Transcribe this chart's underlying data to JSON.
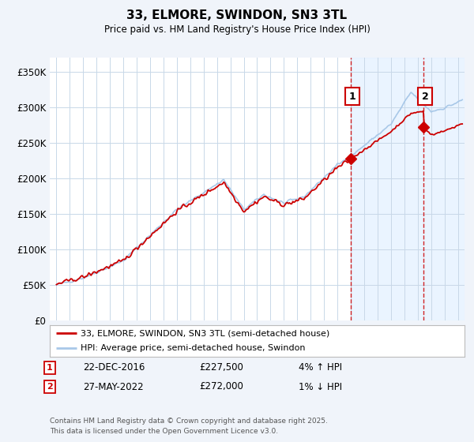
{
  "title": "33, ELMORE, SWINDON, SN3 3TL",
  "subtitle": "Price paid vs. HM Land Registry's House Price Index (HPI)",
  "ylabel_ticks": [
    "£0",
    "£50K",
    "£100K",
    "£150K",
    "£200K",
    "£250K",
    "£300K",
    "£350K"
  ],
  "ytick_values": [
    0,
    50000,
    100000,
    150000,
    200000,
    250000,
    300000,
    350000
  ],
  "ylim": [
    0,
    370000
  ],
  "xlim_start": 1994.5,
  "xlim_end": 2025.5,
  "hpi_color": "#a8c8e8",
  "price_color": "#cc0000",
  "sale1_x": 2016.97,
  "sale1_y": 227500,
  "sale2_x": 2022.41,
  "sale2_y": 272000,
  "sale1_label": "22-DEC-2016",
  "sale2_label": "27-MAY-2022",
  "sale1_price": "£227,500",
  "sale2_price": "£272,000",
  "sale1_hpi": "4% ↑ HPI",
  "sale2_hpi": "1% ↓ HPI",
  "legend_line1": "33, ELMORE, SWINDON, SN3 3TL (semi-detached house)",
  "legend_line2": "HPI: Average price, semi-detached house, Swindon",
  "footer": "Contains HM Land Registry data © Crown copyright and database right 2025.\nThis data is licensed under the Open Government Licence v3.0.",
  "background_color": "#f0f4fa",
  "plot_bg_color": "#ffffff",
  "grid_color": "#c8d8e8",
  "shade_color": "#ddeeff"
}
